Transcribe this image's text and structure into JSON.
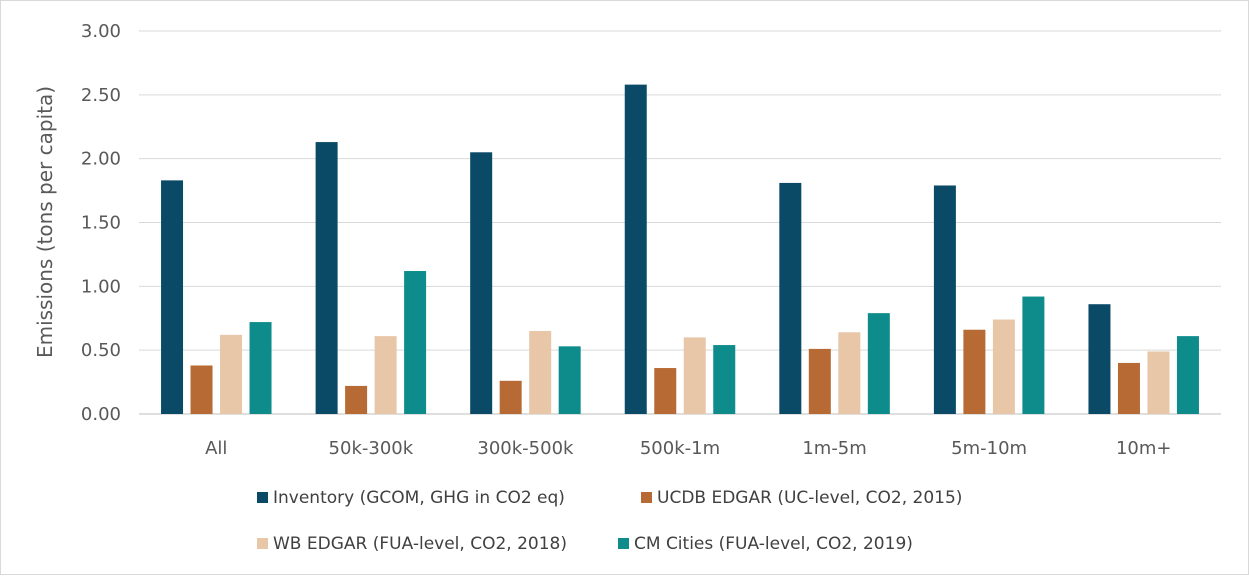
{
  "chart_data": {
    "type": "bar",
    "title": "",
    "xlabel": "",
    "ylabel": "Emissions (tons per capita)",
    "ylim": [
      0,
      3
    ],
    "yticks": [
      "0.00",
      "0.50",
      "1.00",
      "1.50",
      "2.00",
      "2.50",
      "3.00"
    ],
    "grid": true,
    "legend_position": "bottom",
    "categories": [
      "All",
      "50k-300k",
      "300k-500k",
      "500k-1m",
      "1m-5m",
      "5m-10m",
      "10m+"
    ],
    "series": [
      {
        "name": "Inventory (GCOM, GHG in CO2 eq)",
        "color": "#0b4a67",
        "values": [
          1.83,
          2.13,
          2.05,
          2.58,
          1.81,
          1.79,
          0.86
        ]
      },
      {
        "name": "UCDB EDGAR (UC-level, CO2, 2015)",
        "color": "#b86a35",
        "values": [
          0.38,
          0.22,
          0.26,
          0.36,
          0.51,
          0.66,
          0.4
        ]
      },
      {
        "name": "WB EDGAR (FUA-level, CO2, 2018)",
        "color": "#e8c6a8",
        "values": [
          0.62,
          0.61,
          0.65,
          0.6,
          0.64,
          0.74,
          0.49
        ]
      },
      {
        "name": "CM Cities (FUA-level, CO2, 2019)",
        "color": "#0e8c8c",
        "values": [
          0.72,
          1.12,
          0.53,
          0.54,
          0.79,
          0.92,
          0.61
        ]
      }
    ]
  }
}
